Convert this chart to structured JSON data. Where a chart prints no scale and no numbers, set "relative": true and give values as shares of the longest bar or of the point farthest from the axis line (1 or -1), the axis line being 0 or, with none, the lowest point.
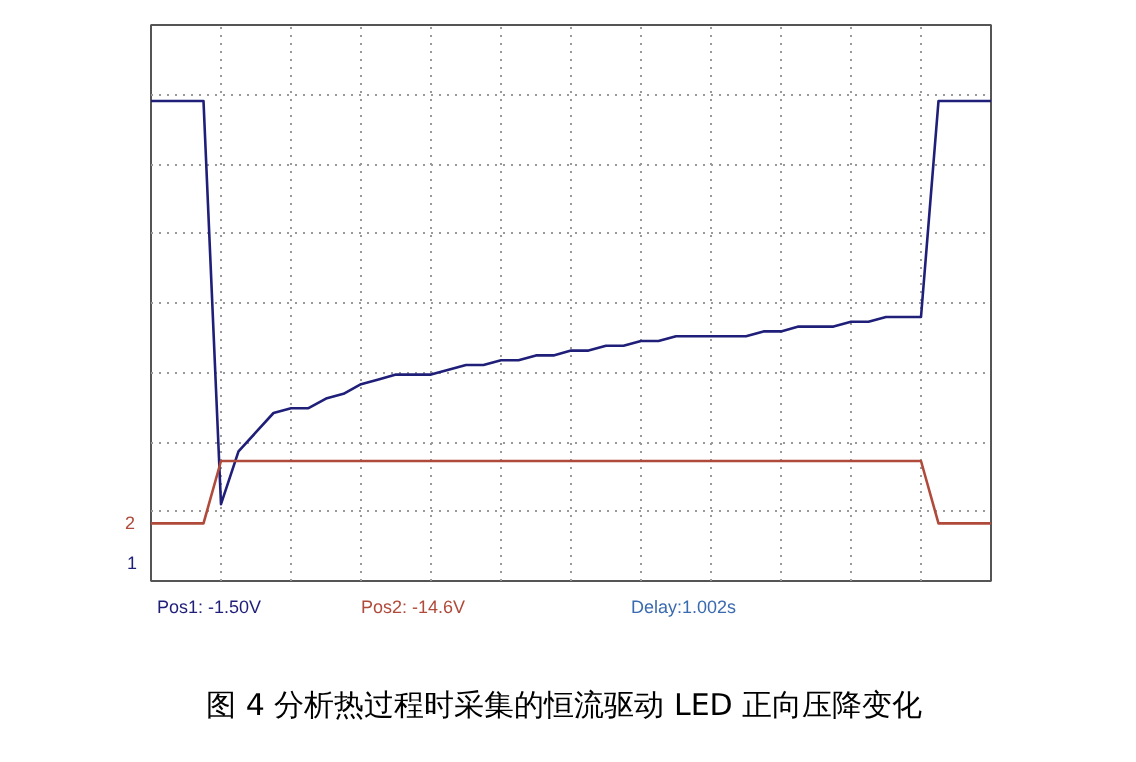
{
  "chart_data": {
    "type": "line",
    "relative": true,
    "grid": true,
    "tick_labels": false,
    "title": "图 4  分析热过程时采集的恒流驱动 LED 正向压降变化",
    "categories": [
      null,
      null,
      null,
      null,
      null,
      null,
      null,
      null,
      null,
      null,
      null,
      null,
      null,
      null,
      null,
      null,
      null,
      null,
      null,
      null,
      null,
      null,
      null,
      null,
      null,
      null,
      null,
      null,
      null,
      null,
      null,
      null,
      null,
      null,
      null,
      null,
      null,
      null,
      null,
      null,
      null,
      null,
      null,
      null,
      null,
      null,
      null,
      null,
      null
    ],
    "series": [
      {
        "color": "#1f1f7a",
        "values": [
          1,
          1,
          1,
          1,
          0.16,
          0.27,
          0.31,
          0.35,
          0.36,
          0.36,
          0.38,
          0.39,
          0.41,
          0.42,
          0.43,
          0.43,
          0.43,
          0.44,
          0.45,
          0.45,
          0.46,
          0.46,
          0.47,
          0.47,
          0.48,
          0.48,
          0.49,
          0.49,
          0.5,
          0.5,
          0.51,
          0.51,
          0.51,
          0.51,
          0.51,
          0.52,
          0.52,
          0.53,
          0.53,
          0.53,
          0.54,
          0.54,
          0.55,
          0.55,
          0.55,
          1,
          1,
          1,
          1
        ]
      },
      {
        "color": "#b04a3a",
        "values": [
          0.12,
          0.12,
          0.12,
          0.12,
          0.25,
          0.25,
          0.25,
          0.25,
          0.25,
          0.25,
          0.25,
          0.25,
          0.25,
          0.25,
          0.25,
          0.25,
          0.25,
          0.25,
          0.25,
          0.25,
          0.25,
          0.25,
          0.25,
          0.25,
          0.25,
          0.25,
          0.25,
          0.25,
          0.25,
          0.25,
          0.25,
          0.25,
          0.25,
          0.25,
          0.25,
          0.25,
          0.25,
          0.25,
          0.25,
          0.25,
          0.25,
          0.25,
          0.25,
          0.25,
          0.25,
          0.12,
          0.12,
          0.12,
          0.12
        ]
      }
    ],
    "annotations": [
      "Pos1:  -1.50V",
      "Pos2:  -14.6V",
      "Delay:1.002s",
      "2",
      "1"
    ]
  }
}
